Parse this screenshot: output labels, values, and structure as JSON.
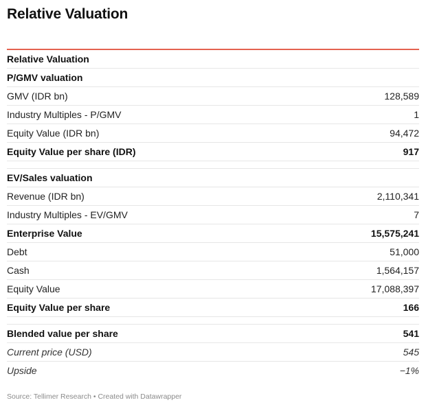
{
  "title": "Relative Valuation",
  "table": {
    "header": "Relative Valuation",
    "pgmv": {
      "section": "P/GMV valuation",
      "rows": [
        {
          "label": "GMV (IDR bn)",
          "value": "128,589"
        },
        {
          "label": "Industry Multiples - P/GMV",
          "value": "1"
        },
        {
          "label": "Equity Value (IDR bn)",
          "value": "94,472"
        },
        {
          "label": "Equity Value per share (IDR)",
          "value": "917"
        }
      ]
    },
    "evsales": {
      "section": "EV/Sales valuation",
      "rows": [
        {
          "label": "Revenue (IDR bn)",
          "value": "2,110,341"
        },
        {
          "label": "Industry Multiples - EV/GMV",
          "value": "7"
        },
        {
          "label": "Enterprise Value",
          "value": "15,575,241"
        },
        {
          "label": "Debt",
          "value": "51,000"
        },
        {
          "label": "Cash",
          "value": "1,564,157"
        },
        {
          "label": "Equity Value",
          "value": "17,088,397"
        },
        {
          "label": "Equity Value per share",
          "value": "166"
        }
      ]
    },
    "summary": {
      "rows": [
        {
          "label": "Blended value per share",
          "value": "541"
        },
        {
          "label": "Current price (USD)",
          "value": "545"
        },
        {
          "label": "Upside",
          "value": "−1%"
        }
      ]
    }
  },
  "source": "Source: Tellimer Research • Created with Datawrapper",
  "colors": {
    "accent_rule": "#e4614f",
    "row_divider": "#e6e6e6",
    "footer_text": "#8a8a8a"
  }
}
